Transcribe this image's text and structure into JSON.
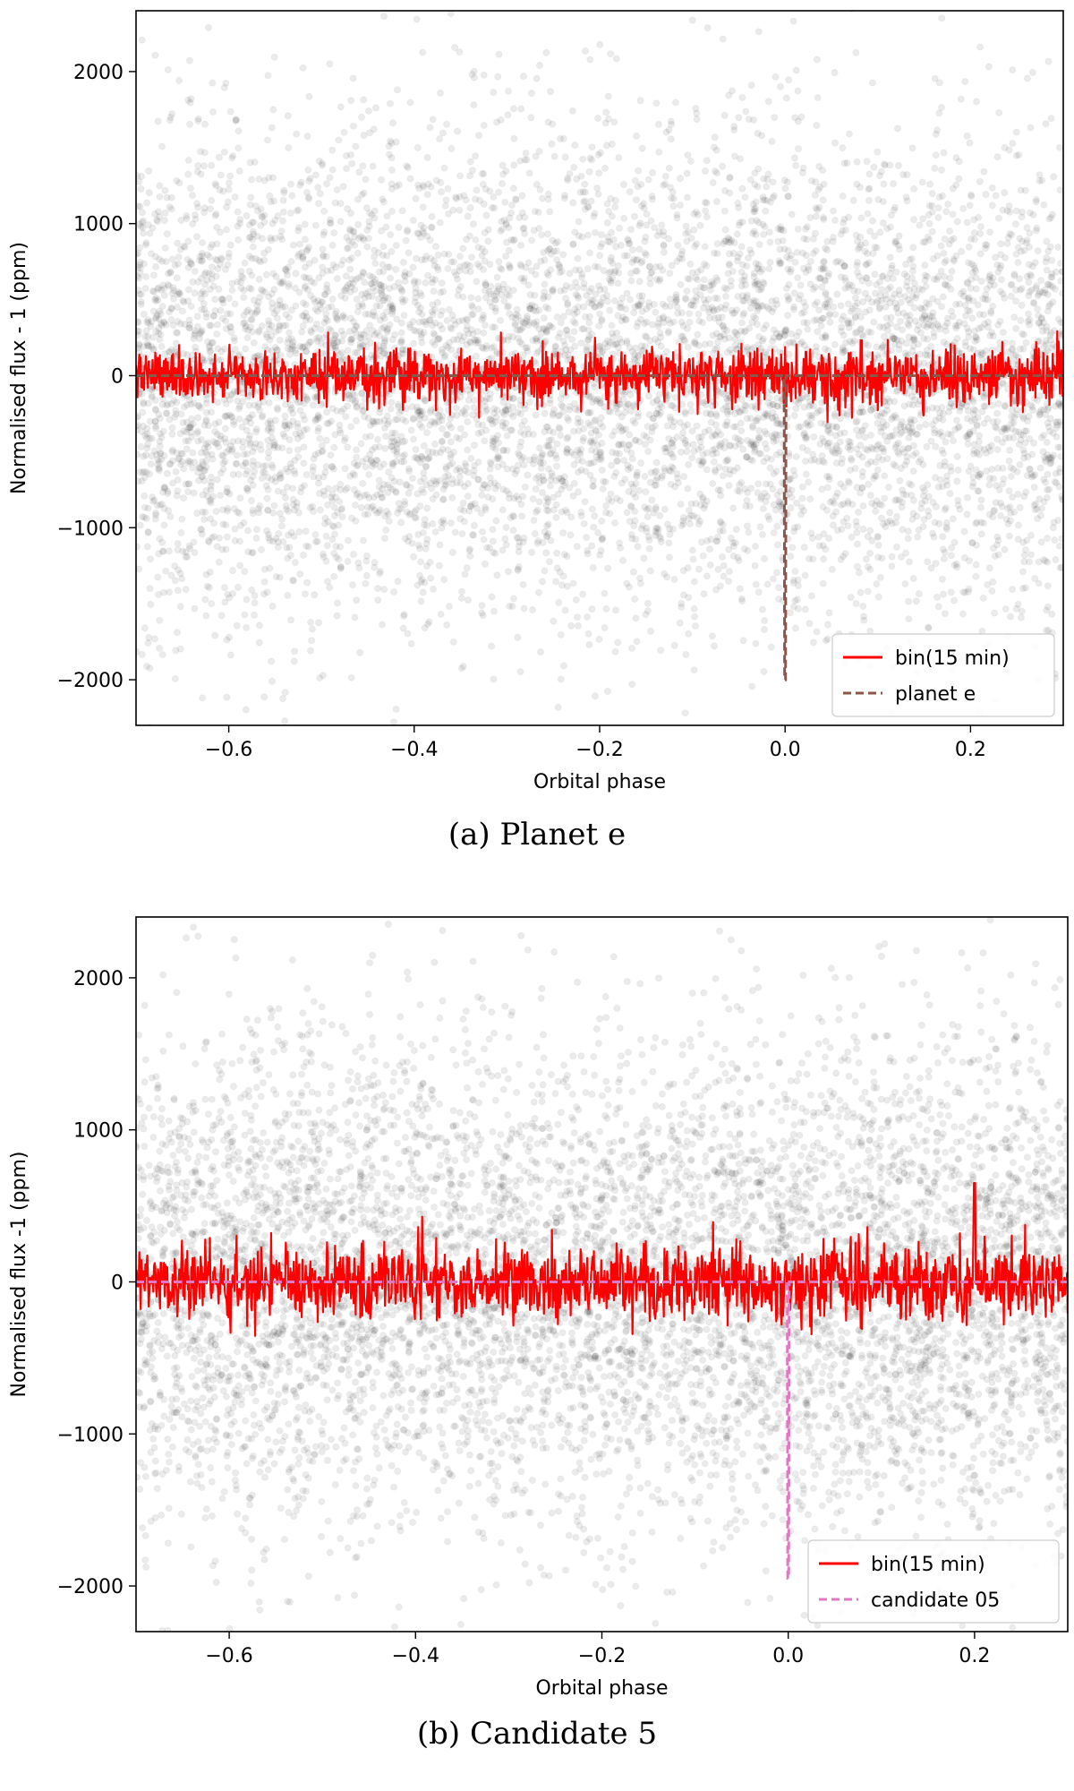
{
  "figure": {
    "panels": [
      {
        "caption": "(a) Planet e",
        "ylabel": "Normalised flux - 1 (ppm)",
        "xlabel": "Orbital phase",
        "legend": [
          "bin(15 min)",
          "planet e"
        ]
      },
      {
        "caption": "(b) Candidate 5",
        "ylabel": "Normalised flux -1 (ppm)",
        "xlabel": "Orbital phase",
        "legend": [
          "bin(15 min)",
          "candidate 05"
        ]
      }
    ]
  },
  "chart_data": [
    {
      "type": "scatter",
      "title": "",
      "xlabel": "Orbital phase",
      "ylabel": "Normalised flux - 1 (ppm)",
      "xlim": [
        -0.7,
        0.3
      ],
      "ylim": [
        -2300,
        2400
      ],
      "xticks": [
        -0.6,
        -0.4,
        -0.2,
        0.0,
        0.2
      ],
      "xtick_labels": [
        "−0.6",
        "−0.4",
        "−0.2",
        "0.0",
        "0.2"
      ],
      "yticks": [
        -2000,
        -1000,
        0,
        1000,
        2000
      ],
      "ytick_labels": [
        "−2000",
        "−1000",
        "0",
        "1000",
        "2000"
      ],
      "grid": false,
      "legend_position": "bottom-right",
      "series": [
        {
          "name": "bin(15 min)",
          "kind": "line",
          "color": "#ff0000",
          "baseline": 0,
          "noise_ppm": 100,
          "dip_at_phase": 0.0
        },
        {
          "name": "planet e",
          "kind": "dashed-model",
          "color": "#8c564b",
          "baseline": 0,
          "transit_phase": 0.0,
          "transit_depth_ppm": -2000
        },
        {
          "kind": "points",
          "color": "#000000",
          "alpha": 0.08,
          "center": 0,
          "scatter_ppm": 800
        }
      ]
    },
    {
      "type": "scatter",
      "title": "",
      "xlabel": "Orbital phase",
      "ylabel": "Normalised flux -1 (ppm)",
      "xlim": [
        -0.7,
        0.3
      ],
      "ylim": [
        -2300,
        2400
      ],
      "xticks": [
        -0.6,
        -0.4,
        -0.2,
        0.0,
        0.2
      ],
      "xtick_labels": [
        "−0.6",
        "−0.4",
        "−0.2",
        "0.0",
        "0.2"
      ],
      "yticks": [
        -2000,
        -1000,
        0,
        1000,
        2000
      ],
      "ytick_labels": [
        "−2000",
        "−1000",
        "0",
        "1000",
        "2000"
      ],
      "grid": false,
      "legend_position": "bottom-right",
      "series": [
        {
          "name": "bin(15 min)",
          "kind": "line",
          "color": "#ff0000",
          "baseline": 0,
          "noise_ppm": 130,
          "spike_at_phase": 0.2,
          "spike_ppm": 650
        },
        {
          "name": "candidate 05",
          "kind": "dashed-model",
          "color": "#e377c2",
          "baseline": 0,
          "transit_phase": 0.0,
          "transit_depth_ppm": -1950
        },
        {
          "kind": "points",
          "color": "#000000",
          "alpha": 0.08,
          "center": 0,
          "scatter_ppm": 800
        }
      ]
    }
  ]
}
